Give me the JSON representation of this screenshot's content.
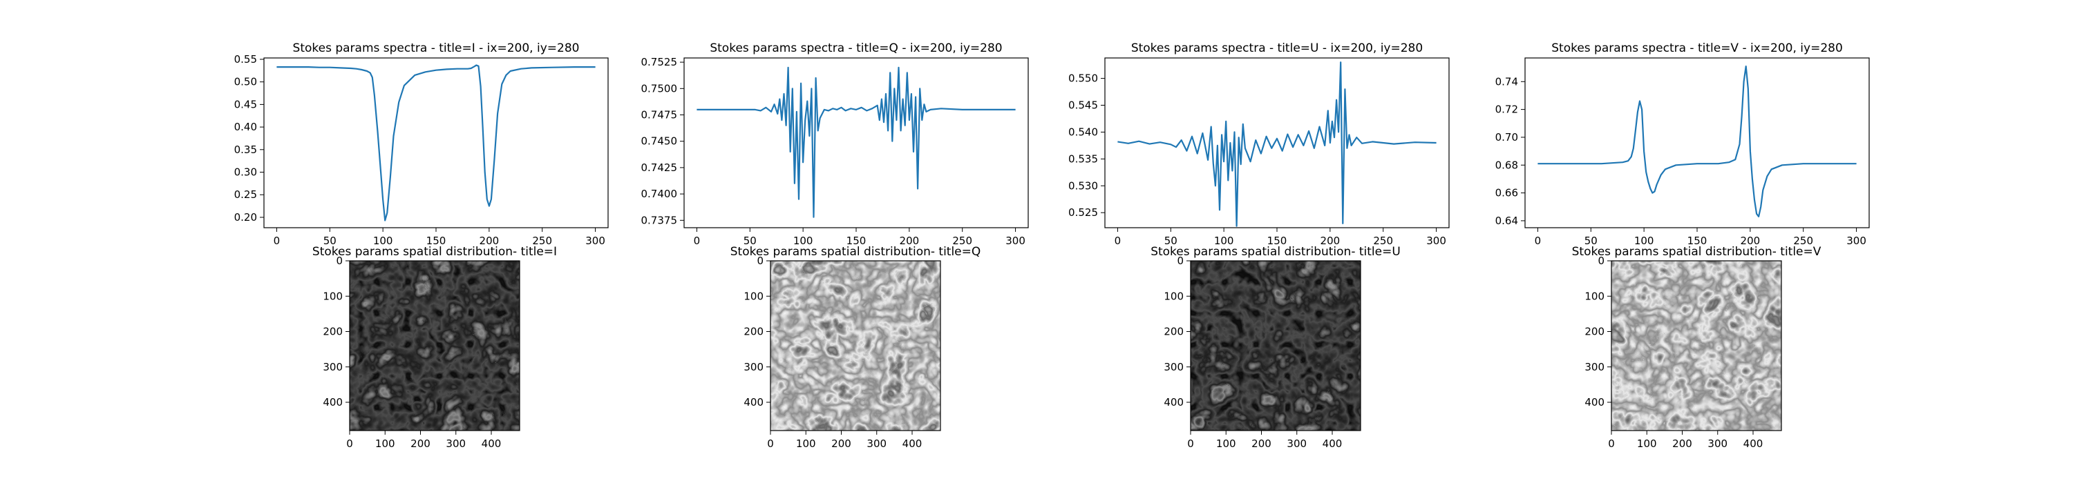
{
  "figure": {
    "line_color": "#1f77b4",
    "axis_color": "#000000",
    "background": "#ffffff"
  },
  "chart_data": [
    {
      "type": "line",
      "title": "Stokes params spectra - title=I - ix=200, iy=280",
      "xlabel": "",
      "ylabel": "",
      "xlim": [
        -12,
        312
      ],
      "ylim": [
        0.177,
        0.553
      ],
      "xticks": [
        0,
        50,
        100,
        150,
        200,
        250,
        300
      ],
      "yticks": [
        0.2,
        0.25,
        0.3,
        0.35,
        0.4,
        0.45,
        0.5,
        0.55
      ],
      "ytick_labels": [
        "0.20",
        "0.25",
        "0.30",
        "0.35",
        "0.40",
        "0.45",
        "0.50",
        "0.55"
      ],
      "series": [
        {
          "name": "I",
          "x": [
            0,
            10,
            20,
            30,
            40,
            50,
            60,
            70,
            75,
            80,
            85,
            88,
            90,
            92,
            95,
            98,
            100,
            102,
            104,
            107,
            110,
            115,
            120,
            130,
            140,
            150,
            160,
            170,
            180,
            183,
            186,
            188,
            190,
            192,
            194,
            196,
            198,
            200,
            202,
            205,
            208,
            212,
            216,
            220,
            230,
            240,
            260,
            280,
            300
          ],
          "y": [
            0.533,
            0.533,
            0.533,
            0.533,
            0.532,
            0.532,
            0.531,
            0.53,
            0.529,
            0.527,
            0.524,
            0.52,
            0.51,
            0.47,
            0.39,
            0.3,
            0.24,
            0.193,
            0.21,
            0.29,
            0.38,
            0.455,
            0.492,
            0.515,
            0.522,
            0.526,
            0.528,
            0.529,
            0.529,
            0.53,
            0.534,
            0.537,
            0.535,
            0.49,
            0.4,
            0.3,
            0.24,
            0.225,
            0.24,
            0.33,
            0.43,
            0.495,
            0.515,
            0.524,
            0.529,
            0.531,
            0.532,
            0.533,
            0.533
          ]
        }
      ]
    },
    {
      "type": "line",
      "title": "Stokes params spectra - title=Q - ix=200, iy=280",
      "xlabel": "",
      "ylabel": "",
      "xlim": [
        -12,
        312
      ],
      "ylim": [
        0.7368,
        0.7529
      ],
      "xticks": [
        0,
        50,
        100,
        150,
        200,
        250,
        300
      ],
      "yticks": [
        0.7375,
        0.74,
        0.7425,
        0.745,
        0.7475,
        0.75,
        0.7525
      ],
      "ytick_labels": [
        "0.7375",
        "0.7400",
        "0.7425",
        "0.7450",
        "0.7475",
        "0.7500",
        "0.7525"
      ],
      "series": [
        {
          "name": "Q",
          "x": [
            0,
            20,
            40,
            55,
            60,
            65,
            70,
            73,
            76,
            78,
            80,
            82,
            84,
            86,
            88,
            90,
            92,
            94,
            96,
            98,
            100,
            102,
            104,
            106,
            108,
            110,
            112,
            114,
            116,
            118,
            120,
            124,
            128,
            132,
            136,
            140,
            145,
            150,
            155,
            160,
            165,
            170,
            172,
            174,
            176,
            178,
            180,
            182,
            184,
            186,
            188,
            190,
            192,
            194,
            196,
            198,
            200,
            202,
            204,
            206,
            208,
            210,
            212,
            214,
            216,
            220,
            230,
            250,
            270,
            300
          ],
          "x_note": "",
          "y": [
            0.748,
            0.748,
            0.748,
            0.748,
            0.7479,
            0.7482,
            0.7478,
            0.7485,
            0.7476,
            0.749,
            0.747,
            0.7495,
            0.7465,
            0.752,
            0.744,
            0.75,
            0.741,
            0.7478,
            0.7395,
            0.7505,
            0.743,
            0.747,
            0.7488,
            0.7455,
            0.75,
            0.7378,
            0.751,
            0.746,
            0.7472,
            0.7476,
            0.748,
            0.7479,
            0.7481,
            0.748,
            0.7482,
            0.7479,
            0.7481,
            0.748,
            0.7482,
            0.7479,
            0.7481,
            0.7484,
            0.747,
            0.749,
            0.7468,
            0.7495,
            0.746,
            0.7515,
            0.745,
            0.75,
            0.747,
            0.752,
            0.746,
            0.749,
            0.7465,
            0.7515,
            0.747,
            0.7495,
            0.744,
            0.7492,
            0.7405,
            0.75,
            0.747,
            0.7485,
            0.7478,
            0.748,
            0.7481,
            0.748,
            0.748,
            0.748
          ]
        }
      ]
    },
    {
      "type": "line",
      "title": "Stokes params spectra - title=U - ix=200, iy=280",
      "xlabel": "",
      "ylabel": "",
      "xlim": [
        -12,
        312
      ],
      "ylim": [
        0.5222,
        0.5538
      ],
      "xticks": [
        0,
        50,
        100,
        150,
        200,
        250,
        300
      ],
      "yticks": [
        0.525,
        0.53,
        0.535,
        0.54,
        0.545,
        0.55
      ],
      "ytick_labels": [
        "0.525",
        "0.530",
        "0.535",
        "0.540",
        "0.545",
        "0.550"
      ],
      "series": [
        {
          "name": "U",
          "x": [
            0,
            10,
            20,
            30,
            40,
            50,
            55,
            60,
            65,
            70,
            75,
            80,
            85,
            88,
            90,
            92,
            94,
            96,
            98,
            100,
            102,
            104,
            106,
            108,
            110,
            112,
            114,
            116,
            118,
            120,
            125,
            130,
            135,
            140,
            145,
            150,
            155,
            160,
            165,
            170,
            175,
            180,
            185,
            190,
            195,
            198,
            200,
            202,
            204,
            206,
            208,
            210,
            212,
            214,
            216,
            218,
            220,
            225,
            230,
            240,
            260,
            280,
            300
          ],
          "y": [
            0.5382,
            0.5379,
            0.5383,
            0.5378,
            0.5381,
            0.5377,
            0.5372,
            0.5385,
            0.5365,
            0.5392,
            0.536,
            0.5398,
            0.5348,
            0.541,
            0.5342,
            0.53,
            0.5375,
            0.5255,
            0.5395,
            0.5345,
            0.542,
            0.531,
            0.538,
            0.5328,
            0.54,
            0.5225,
            0.539,
            0.534,
            0.5415,
            0.537,
            0.5345,
            0.5385,
            0.536,
            0.5392,
            0.537,
            0.5388,
            0.5365,
            0.5396,
            0.5372,
            0.5395,
            0.5375,
            0.5402,
            0.537,
            0.541,
            0.5375,
            0.544,
            0.538,
            0.542,
            0.539,
            0.546,
            0.54,
            0.553,
            0.523,
            0.548,
            0.537,
            0.5395,
            0.5375,
            0.539,
            0.5379,
            0.5382,
            0.5378,
            0.5381,
            0.538
          ]
        }
      ]
    },
    {
      "type": "line",
      "title": "Stokes params spectra - title=V - ix=200, iy=280",
      "xlabel": "",
      "ylabel": "",
      "xlim": [
        -12,
        312
      ],
      "ylim": [
        0.635,
        0.757
      ],
      "xticks": [
        0,
        50,
        100,
        150,
        200,
        250,
        300
      ],
      "yticks": [
        0.64,
        0.66,
        0.68,
        0.7,
        0.72,
        0.74
      ],
      "ytick_labels": [
        "0.64",
        "0.66",
        "0.68",
        "0.70",
        "0.72",
        "0.74"
      ],
      "series": [
        {
          "name": "V",
          "x": [
            0,
            20,
            40,
            60,
            80,
            85,
            88,
            90,
            92,
            94,
            96,
            98,
            100,
            102,
            104,
            106,
            108,
            110,
            112,
            116,
            120,
            130,
            150,
            170,
            180,
            186,
            190,
            192,
            194,
            196,
            198,
            200,
            202,
            204,
            206,
            208,
            210,
            212,
            216,
            220,
            230,
            250,
            280,
            300
          ],
          "y": [
            0.681,
            0.681,
            0.681,
            0.681,
            0.682,
            0.683,
            0.686,
            0.692,
            0.705,
            0.718,
            0.726,
            0.72,
            0.69,
            0.675,
            0.668,
            0.663,
            0.66,
            0.661,
            0.666,
            0.673,
            0.677,
            0.68,
            0.681,
            0.681,
            0.682,
            0.684,
            0.695,
            0.715,
            0.74,
            0.751,
            0.735,
            0.69,
            0.67,
            0.655,
            0.645,
            0.643,
            0.65,
            0.662,
            0.672,
            0.677,
            0.68,
            0.681,
            0.681,
            0.681
          ]
        }
      ]
    },
    {
      "type": "heatmap",
      "title": "Stokes params spatial distribution- title=I",
      "xticks": [
        0,
        100,
        200,
        300,
        400
      ],
      "yticks": [
        0,
        100,
        200,
        300,
        400
      ],
      "extent": [
        0,
        480
      ],
      "cmap": "gray",
      "style": "dark"
    },
    {
      "type": "heatmap",
      "title": "Stokes params spatial distribution- title=Q",
      "xticks": [
        0,
        100,
        200,
        300,
        400
      ],
      "yticks": [
        0,
        100,
        200,
        300,
        400
      ],
      "extent": [
        0,
        480
      ],
      "cmap": "gray",
      "style": "light"
    },
    {
      "type": "heatmap",
      "title": "Stokes params spatial distribution- title=U",
      "xticks": [
        0,
        100,
        200,
        300,
        400
      ],
      "yticks": [
        0,
        100,
        200,
        300,
        400
      ],
      "extent": [
        0,
        480
      ],
      "cmap": "gray",
      "style": "dark"
    },
    {
      "type": "heatmap",
      "title": "Stokes params spatial distribution- title=V",
      "xticks": [
        0,
        100,
        200,
        300,
        400
      ],
      "yticks": [
        0,
        100,
        200,
        300,
        400
      ],
      "extent": [
        0,
        480
      ],
      "cmap": "gray",
      "style": "light"
    }
  ]
}
